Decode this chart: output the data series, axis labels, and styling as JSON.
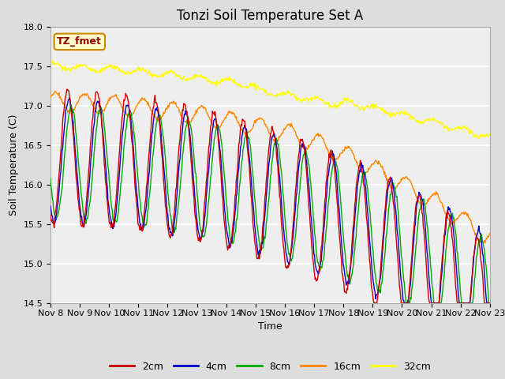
{
  "title": "Tonzi Soil Temperature Set A",
  "xlabel": "Time",
  "ylabel": "Soil Temperature (C)",
  "ylim": [
    14.5,
    18.0
  ],
  "xlim": [
    0,
    360
  ],
  "x_tick_labels": [
    "Nov 8",
    "Nov 9",
    "Nov 10",
    "Nov 11",
    "Nov 12",
    "Nov 13",
    "Nov 14",
    "Nov 15",
    "Nov 16",
    "Nov 17",
    "Nov 18",
    "Nov 19",
    "Nov 20",
    "Nov 21",
    "Nov 22",
    "Nov 23"
  ],
  "x_tick_positions": [
    0,
    24,
    48,
    72,
    96,
    120,
    144,
    168,
    192,
    216,
    240,
    264,
    288,
    312,
    336,
    360
  ],
  "colors": {
    "2cm": "#cc0000",
    "4cm": "#0000cc",
    "8cm": "#00aa00",
    "16cm": "#ff8800",
    "32cm": "#ffff00"
  },
  "annotation_text": "TZ_fmet",
  "annotation_color": "#990000",
  "annotation_bg": "#ffffcc",
  "annotation_border": "#cc8800",
  "bg_color": "#dddddd",
  "plot_bg": "#eeeeee",
  "grid_color": "#ffffff",
  "title_fontsize": 12,
  "axis_fontsize": 9,
  "tick_fontsize": 8,
  "yticks": [
    14.5,
    15.0,
    15.5,
    16.0,
    16.5,
    17.0,
    17.5,
    18.0
  ]
}
